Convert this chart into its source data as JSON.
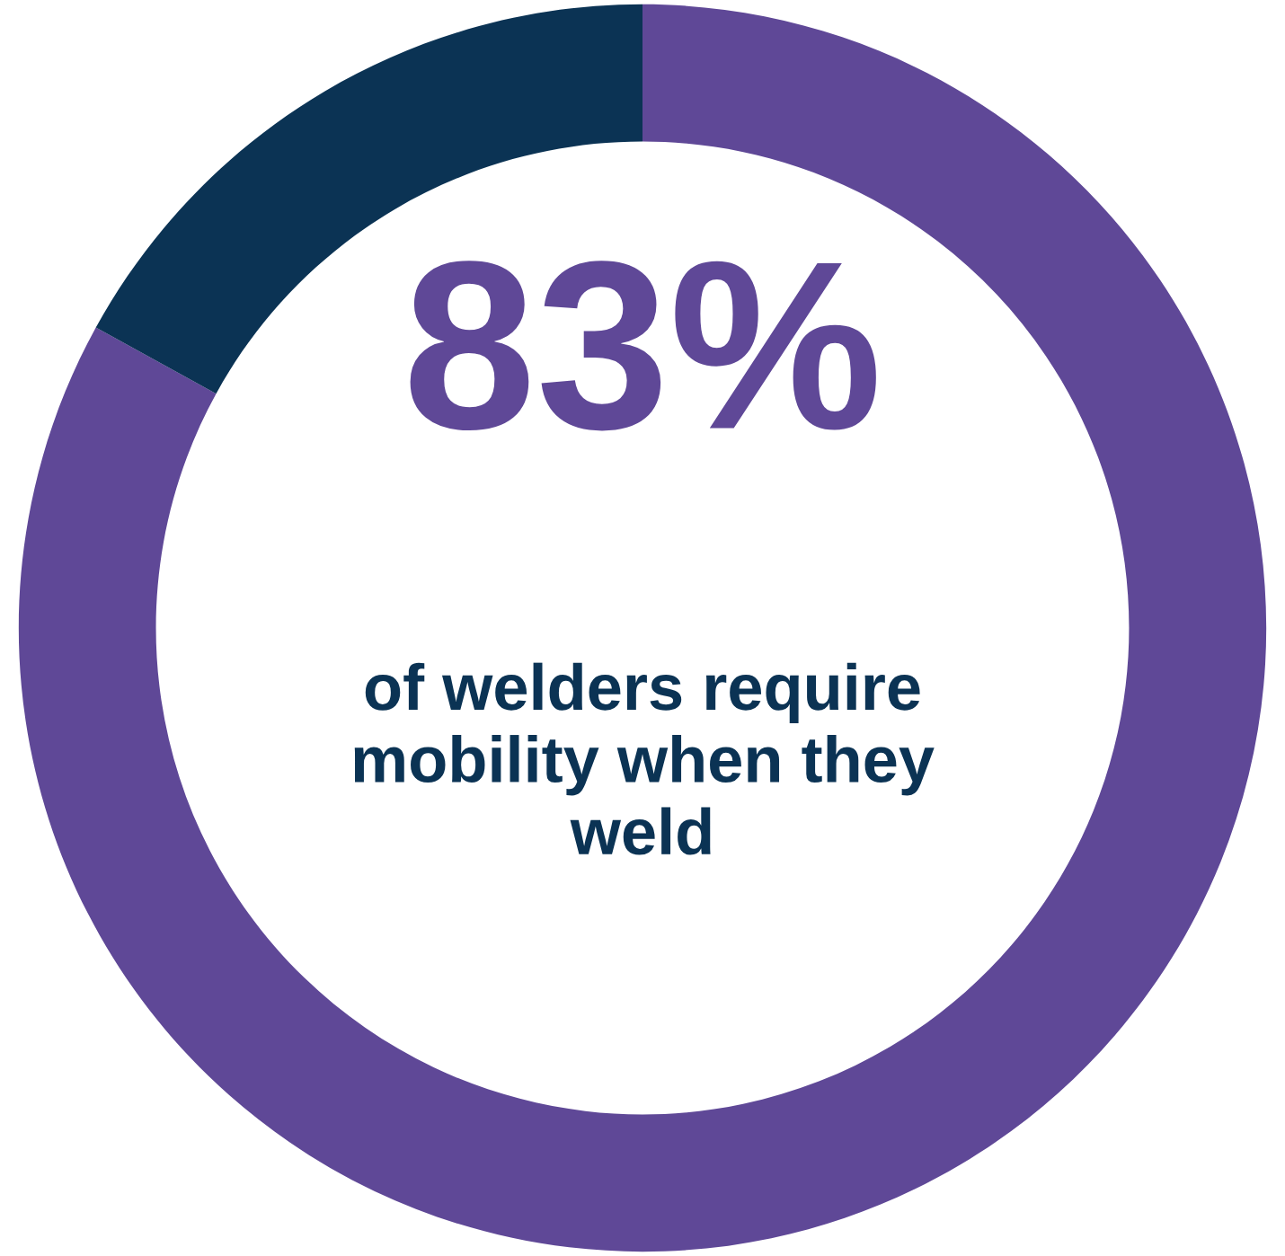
{
  "chart_data": {
    "type": "donut",
    "categories": [
      null,
      null
    ],
    "values": [
      83,
      17
    ],
    "colors": [
      "#5f4897",
      "#0b3354"
    ],
    "value_labels": [
      "83%",
      null
    ],
    "annotations": [
      "of welders require\nmobility when they\nweld"
    ]
  }
}
